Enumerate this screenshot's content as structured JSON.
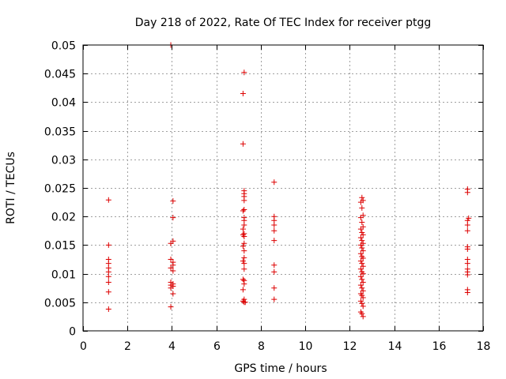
{
  "chart_data": {
    "type": "scatter",
    "title": "Day 218 of 2022, Rate Of TEC Index for receiver ptgg",
    "xlabel": "GPS time / hours",
    "ylabel": "ROTI / TECUs",
    "xlim": [
      0,
      18
    ],
    "ylim": [
      0,
      0.05
    ],
    "xticks": [
      0,
      2,
      4,
      6,
      8,
      10,
      12,
      14,
      16,
      18
    ],
    "xtick_labels": [
      "0",
      "2",
      "4",
      "6",
      "8",
      "10",
      "12",
      "14",
      "16",
      "18"
    ],
    "yticks": [
      0,
      0.005,
      0.01,
      0.015,
      0.02,
      0.025,
      0.03,
      0.035,
      0.04,
      0.045,
      0.05
    ],
    "ytick_labels": [
      "0",
      "0.005",
      "0.01",
      "0.015",
      "0.02",
      "0.025",
      "0.03",
      "0.035",
      "0.04",
      "0.045",
      "0.05"
    ],
    "grid": true,
    "marker": "plus",
    "color": "#dd0000",
    "series": [
      {
        "name": "ROTI",
        "points": [
          [
            1.15,
            0.0229
          ],
          [
            1.15,
            0.015
          ],
          [
            1.15,
            0.0125
          ],
          [
            1.15,
            0.0118
          ],
          [
            1.15,
            0.011
          ],
          [
            1.15,
            0.0103
          ],
          [
            1.15,
            0.0095
          ],
          [
            1.15,
            0.0085
          ],
          [
            1.15,
            0.0068
          ],
          [
            1.15,
            0.0038
          ],
          [
            3.95,
            0.05
          ],
          [
            4.05,
            0.0227
          ],
          [
            4.05,
            0.0198
          ],
          [
            4.05,
            0.0157
          ],
          [
            3.95,
            0.0153
          ],
          [
            3.95,
            0.0125
          ],
          [
            4.05,
            0.012
          ],
          [
            4.05,
            0.0115
          ],
          [
            3.95,
            0.011
          ],
          [
            4.05,
            0.0105
          ],
          [
            3.95,
            0.0085
          ],
          [
            4.05,
            0.0082
          ],
          [
            3.95,
            0.008
          ],
          [
            4.05,
            0.0078
          ],
          [
            3.95,
            0.0075
          ],
          [
            4.05,
            0.0065
          ],
          [
            3.95,
            0.0042
          ],
          [
            7.25,
            0.0452
          ],
          [
            7.2,
            0.0415
          ],
          [
            7.2,
            0.0327
          ],
          [
            7.25,
            0.0245
          ],
          [
            7.25,
            0.024
          ],
          [
            7.25,
            0.0235
          ],
          [
            7.25,
            0.0228
          ],
          [
            7.25,
            0.0212
          ],
          [
            7.2,
            0.021
          ],
          [
            7.25,
            0.0198
          ],
          [
            7.25,
            0.0193
          ],
          [
            7.25,
            0.0185
          ],
          [
            7.2,
            0.0178
          ],
          [
            7.25,
            0.017
          ],
          [
            7.2,
            0.0168
          ],
          [
            7.25,
            0.0165
          ],
          [
            7.25,
            0.0153
          ],
          [
            7.2,
            0.0148
          ],
          [
            7.25,
            0.014
          ],
          [
            7.25,
            0.0128
          ],
          [
            7.2,
            0.0122
          ],
          [
            7.25,
            0.0118
          ],
          [
            7.25,
            0.0108
          ],
          [
            7.2,
            0.009
          ],
          [
            7.25,
            0.0088
          ],
          [
            7.25,
            0.0082
          ],
          [
            7.2,
            0.0072
          ],
          [
            7.25,
            0.0055
          ],
          [
            7.2,
            0.0052
          ],
          [
            7.25,
            0.005
          ],
          [
            7.3,
            0.005
          ],
          [
            8.6,
            0.026
          ],
          [
            8.6,
            0.02
          ],
          [
            8.6,
            0.0193
          ],
          [
            8.6,
            0.0185
          ],
          [
            8.6,
            0.0175
          ],
          [
            8.6,
            0.0158
          ],
          [
            8.6,
            0.0115
          ],
          [
            8.6,
            0.0103
          ],
          [
            8.6,
            0.0075
          ],
          [
            8.6,
            0.0055
          ],
          [
            12.55,
            0.0233
          ],
          [
            12.6,
            0.0228
          ],
          [
            12.5,
            0.0225
          ],
          [
            12.55,
            0.0215
          ],
          [
            12.6,
            0.0202
          ],
          [
            12.5,
            0.0198
          ],
          [
            12.55,
            0.019
          ],
          [
            12.6,
            0.0182
          ],
          [
            12.5,
            0.0178
          ],
          [
            12.55,
            0.0172
          ],
          [
            12.6,
            0.0168
          ],
          [
            12.5,
            0.0163
          ],
          [
            12.55,
            0.0158
          ],
          [
            12.6,
            0.0153
          ],
          [
            12.5,
            0.015
          ],
          [
            12.55,
            0.0145
          ],
          [
            12.6,
            0.014
          ],
          [
            12.5,
            0.0135
          ],
          [
            12.55,
            0.013
          ],
          [
            12.6,
            0.0127
          ],
          [
            12.5,
            0.0122
          ],
          [
            12.55,
            0.0118
          ],
          [
            12.6,
            0.0113
          ],
          [
            12.5,
            0.0108
          ],
          [
            12.55,
            0.0103
          ],
          [
            12.6,
            0.01
          ],
          [
            12.5,
            0.0095
          ],
          [
            12.55,
            0.009
          ],
          [
            12.6,
            0.0085
          ],
          [
            12.5,
            0.008
          ],
          [
            12.55,
            0.0075
          ],
          [
            12.6,
            0.007
          ],
          [
            12.5,
            0.0065
          ],
          [
            12.55,
            0.0062
          ],
          [
            12.6,
            0.0058
          ],
          [
            12.5,
            0.0052
          ],
          [
            12.55,
            0.0048
          ],
          [
            12.6,
            0.0043
          ],
          [
            12.5,
            0.0033
          ],
          [
            12.55,
            0.003
          ],
          [
            12.6,
            0.0025
          ],
          [
            17.3,
            0.0248
          ],
          [
            17.3,
            0.0242
          ],
          [
            17.35,
            0.0197
          ],
          [
            17.3,
            0.0193
          ],
          [
            17.3,
            0.0185
          ],
          [
            17.3,
            0.0175
          ],
          [
            17.3,
            0.0147
          ],
          [
            17.3,
            0.0143
          ],
          [
            17.3,
            0.0125
          ],
          [
            17.3,
            0.0118
          ],
          [
            17.3,
            0.0108
          ],
          [
            17.3,
            0.0103
          ],
          [
            17.3,
            0.0098
          ],
          [
            17.3,
            0.0072
          ],
          [
            17.3,
            0.0067
          ]
        ]
      }
    ]
  }
}
